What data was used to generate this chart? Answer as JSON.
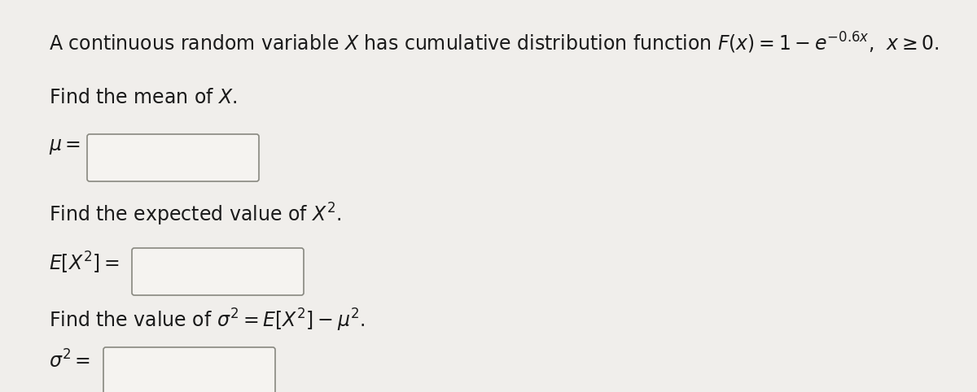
{
  "background_color": "#f0eeeb",
  "text_color": "#1a1a1a",
  "line1": "A continuous random variable $X$ has cumulative distribution function $F(x) = 1 - e^{-0.6x}$,  $x \\geq 0$.",
  "line2": "Find the mean of $X$.",
  "label_mu": "$\\mu =$",
  "line3": "Find the expected value of $X^2$.",
  "label_ex2": "$E[X^2] =$",
  "line4": "Find the value of $\\sigma^2 = E[X^2] - \\mu^2$.",
  "label_sigma2": "$\\sigma^2 =$",
  "box_facecolor": "#f5f3f0",
  "box_edgecolor": "#888880",
  "font_size_main": 17,
  "font_size_label": 17
}
